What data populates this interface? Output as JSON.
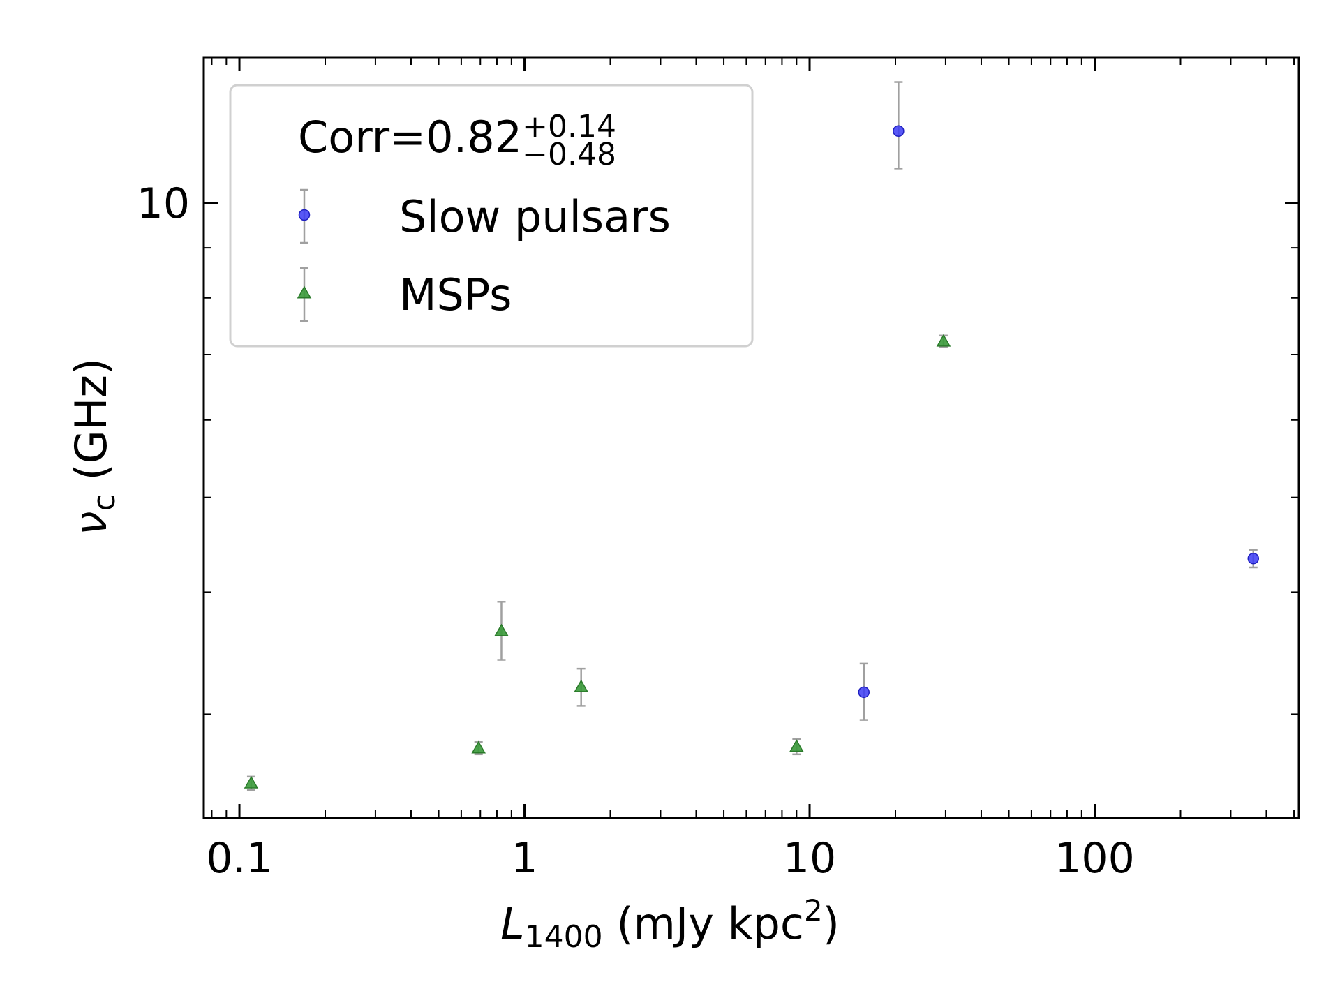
{
  "chart_data": {
    "type": "scatter",
    "x_scale": "log",
    "y_scale": "log",
    "xlim": [
      0.075,
      520
    ],
    "ylim": [
      2.35,
      14.1
    ],
    "x_tick_labels": [
      "0.1",
      "1",
      "10",
      "100"
    ],
    "x_tick_values": [
      0.1,
      1,
      10,
      100
    ],
    "y_tick_labels": [
      "10"
    ],
    "y_tick_values": [
      10
    ],
    "xlabel": {
      "main": "L",
      "sub": "1400",
      "rest": " (mJy kpc",
      "sup": "2",
      "end": ")"
    },
    "ylabel": {
      "main": "ν",
      "sub": "c",
      "rest": " (GHz)"
    },
    "legend": {
      "placement": "upper-left",
      "title": {
        "main": "Corr=0.82",
        "sup": "+0.14",
        "sub": "−0.48"
      }
    },
    "series": [
      {
        "name": "Slow pulsars",
        "marker": "circle",
        "color": "#3b3bf5",
        "points": [
          {
            "x": 20.5,
            "y": 11.85,
            "yerr_low": 1.0,
            "yerr_high": 1.45
          },
          {
            "x": 15.5,
            "y": 3.16,
            "yerr_low": 0.2,
            "yerr_high": 0.22
          },
          {
            "x": 360,
            "y": 4.33,
            "yerr_low": 0.09,
            "yerr_high": 0.09
          }
        ]
      },
      {
        "name": "MSPs",
        "marker": "triangle",
        "color": "#3a9a3a",
        "points": [
          {
            "x": 0.11,
            "y": 2.55,
            "yerr_low": 0.04,
            "yerr_high": 0.04
          },
          {
            "x": 0.69,
            "y": 2.77,
            "yerr_low": 0.04,
            "yerr_high": 0.04
          },
          {
            "x": 0.83,
            "y": 3.65,
            "yerr_low": 0.24,
            "yerr_high": 0.26
          },
          {
            "x": 1.58,
            "y": 3.2,
            "yerr_low": 0.14,
            "yerr_high": 0.14
          },
          {
            "x": 9.0,
            "y": 2.78,
            "yerr_low": 0.05,
            "yerr_high": 0.05
          },
          {
            "x": 29.5,
            "y": 7.22,
            "yerr_low": 0.1,
            "yerr_high": 0.1
          }
        ]
      }
    ],
    "error_bar_color": "#a0a0a0",
    "grid": false
  }
}
